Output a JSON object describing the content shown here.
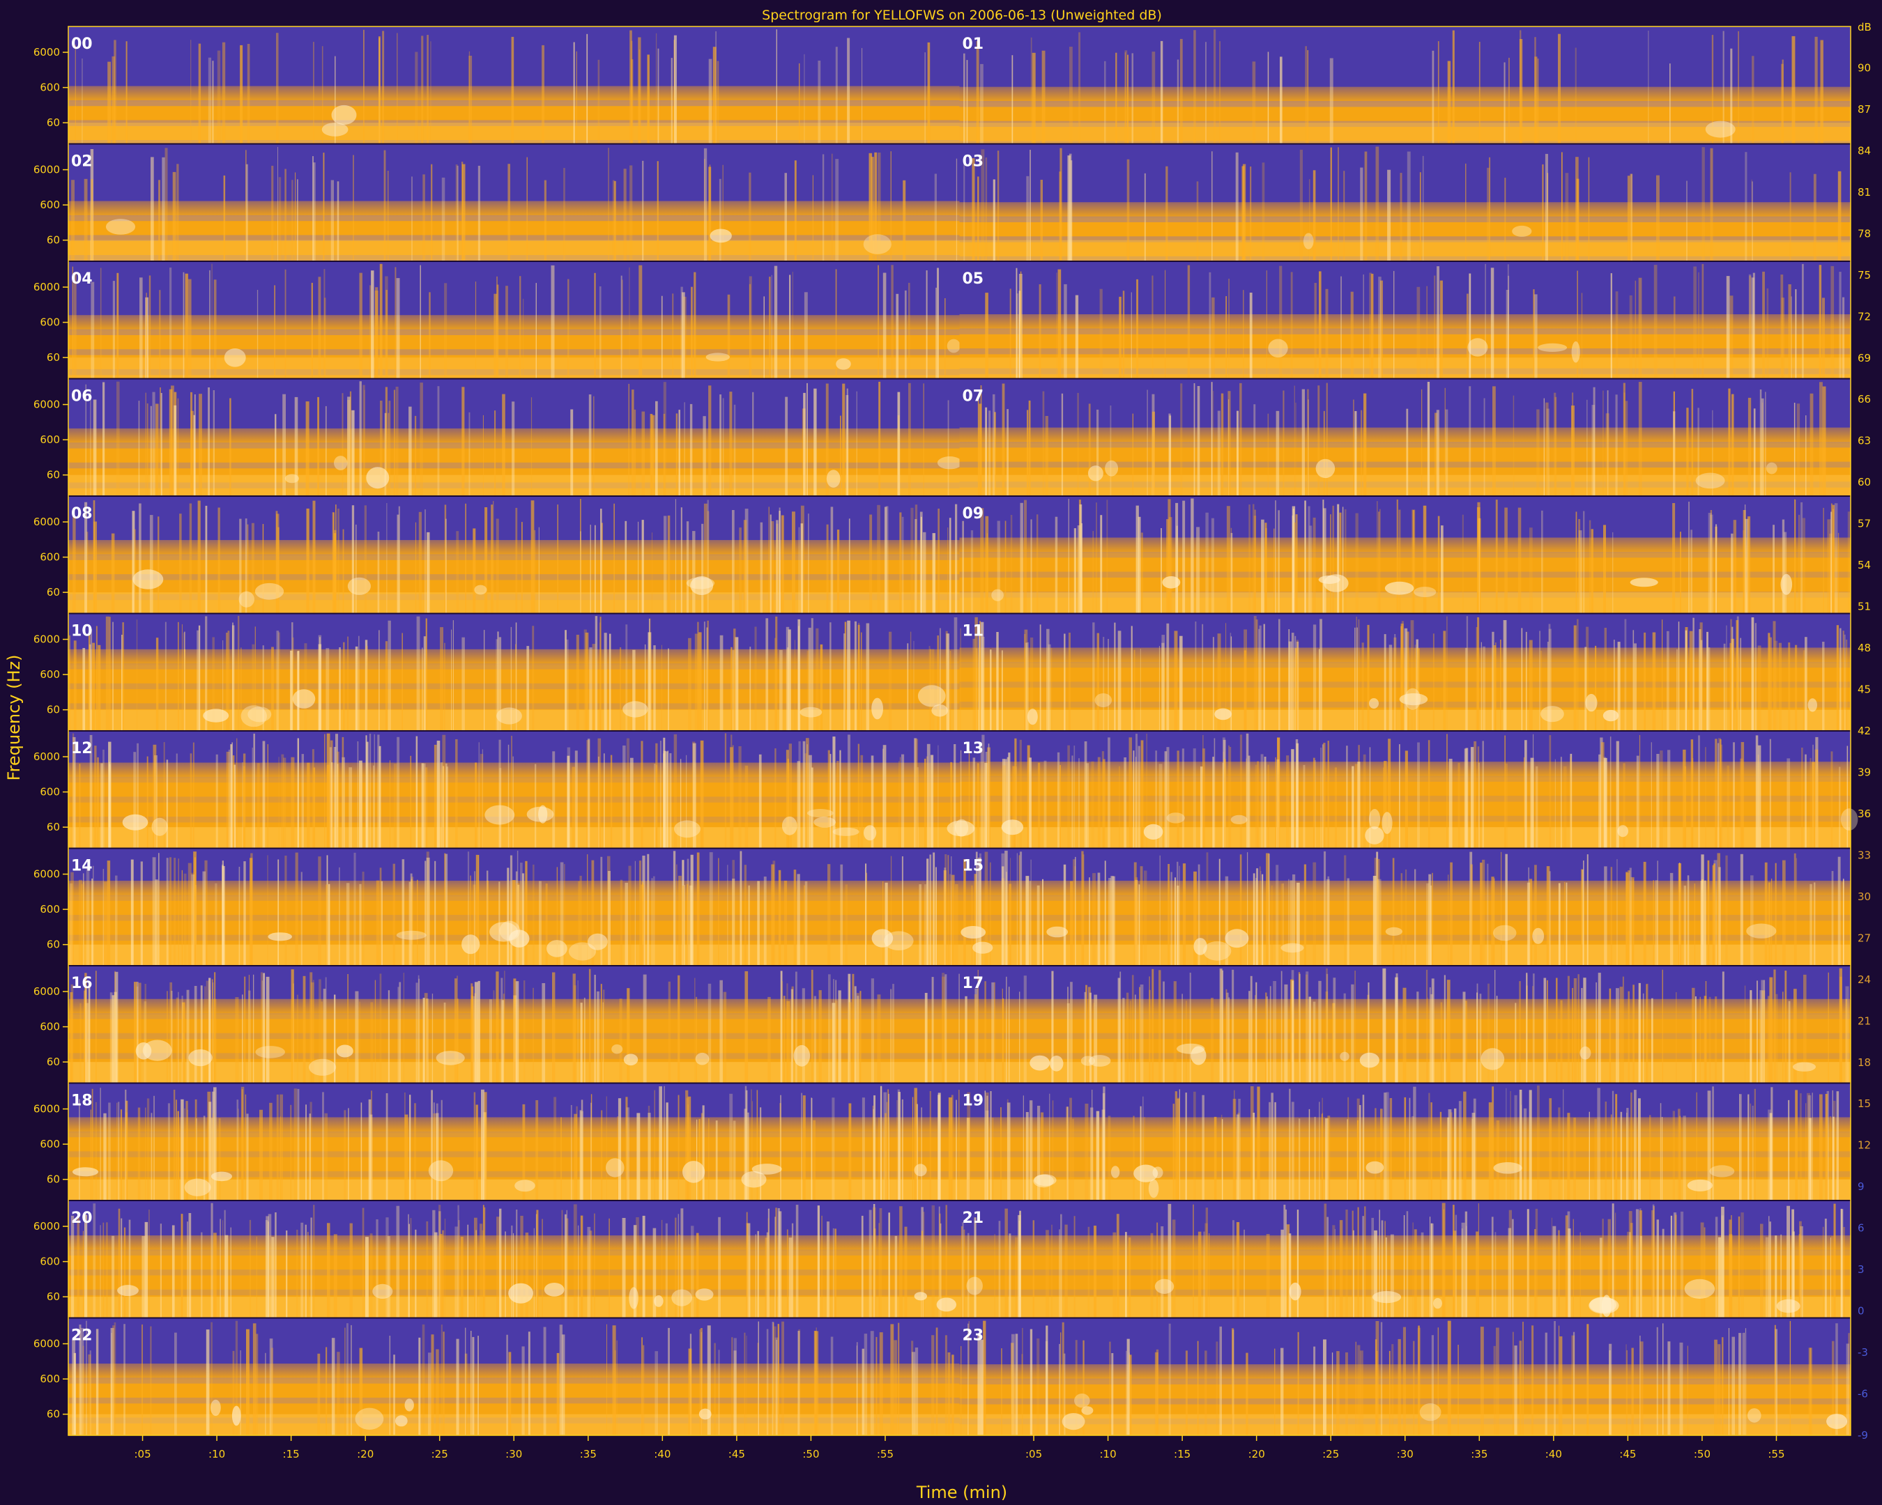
{
  "chart_data": {
    "type": "heatmap",
    "title": "Spectrogram for YELLOFWS on 2006-06-13 (Unweighted dB)",
    "xlabel": "Time (min)",
    "ylabel": "Frequency (Hz)",
    "x_ticks": [
      ":05",
      ":10",
      ":15",
      ":20",
      ":25",
      ":30",
      ":35",
      ":40",
      ":45",
      ":50",
      ":55"
    ],
    "y_ticks": [
      "6000",
      "600",
      "60"
    ],
    "hours": [
      "00",
      "01",
      "02",
      "03",
      "04",
      "05",
      "06",
      "07",
      "08",
      "09",
      "10",
      "11",
      "12",
      "13",
      "14",
      "15",
      "16",
      "17",
      "18",
      "19",
      "20",
      "21",
      "22",
      "23"
    ],
    "colorbar": {
      "unit": "dB",
      "ticks": [
        90,
        87,
        84,
        81,
        78,
        75,
        72,
        69,
        66,
        63,
        60,
        57,
        54,
        51,
        48,
        45,
        42,
        39,
        36,
        33,
        30,
        27,
        24,
        21,
        18,
        15,
        12,
        9,
        6,
        3,
        0,
        -3,
        -6,
        -9
      ],
      "range": [
        -9,
        93
      ],
      "colors": [
        "#2b1e8c",
        "#4a35b0",
        "#7a5ac8",
        "#b98a8a",
        "#f0a020",
        "#ffb400",
        "#ffd070",
        "#fff4e0"
      ]
    },
    "grid": false,
    "hour_activity": [
      0.12,
      0.1,
      0.18,
      0.15,
      0.26,
      0.28,
      0.36,
      0.38,
      0.5,
      0.56,
      0.7,
      0.74,
      0.8,
      0.82,
      0.78,
      0.78,
      0.76,
      0.76,
      0.74,
      0.74,
      0.72,
      0.72,
      0.46,
      0.44
    ]
  }
}
